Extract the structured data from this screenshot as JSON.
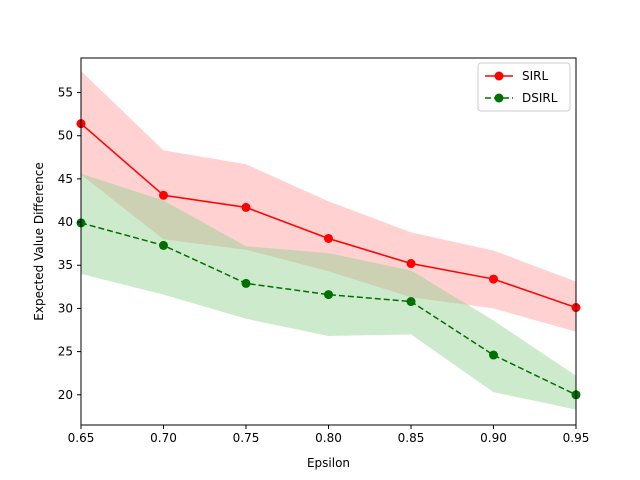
{
  "chart_data": {
    "type": "line",
    "title": "",
    "xlabel": "Epsilon",
    "ylabel": "Expected Value Difference",
    "xlim": [
      0.65,
      0.95
    ],
    "ylim": [
      16.5,
      59.0
    ],
    "x": [
      0.65,
      0.7,
      0.75,
      0.8,
      0.85,
      0.9,
      0.95
    ],
    "x_ticks": [
      "0.65",
      "0.70",
      "0.75",
      "0.80",
      "0.85",
      "0.90",
      "0.95"
    ],
    "y_ticks": [
      20,
      25,
      30,
      35,
      40,
      45,
      50,
      55
    ],
    "legend_position": "top-right",
    "grid": false,
    "series": [
      {
        "name": "SIRL",
        "values": [
          51.4,
          43.1,
          41.7,
          38.1,
          35.2,
          33.4,
          30.1
        ],
        "band_upper": [
          57.5,
          48.3,
          46.7,
          42.4,
          38.8,
          36.7,
          33.1
        ],
        "band_lower": [
          45.5,
          38.0,
          36.8,
          34.3,
          31.3,
          30.0,
          27.3
        ],
        "color": "#ff0000",
        "band_color": "#ff9a9a",
        "line_style": "solid"
      },
      {
        "name": "DSIRL",
        "values": [
          39.9,
          37.3,
          32.9,
          31.6,
          30.8,
          24.6,
          20.0
        ],
        "band_upper": [
          45.6,
          42.5,
          37.2,
          36.4,
          34.4,
          28.6,
          22.2
        ],
        "band_lower": [
          34.0,
          31.6,
          28.8,
          26.8,
          27.0,
          20.3,
          18.3
        ],
        "color": "#007000",
        "band_color": "#90d090",
        "line_style": "dashed"
      }
    ]
  }
}
